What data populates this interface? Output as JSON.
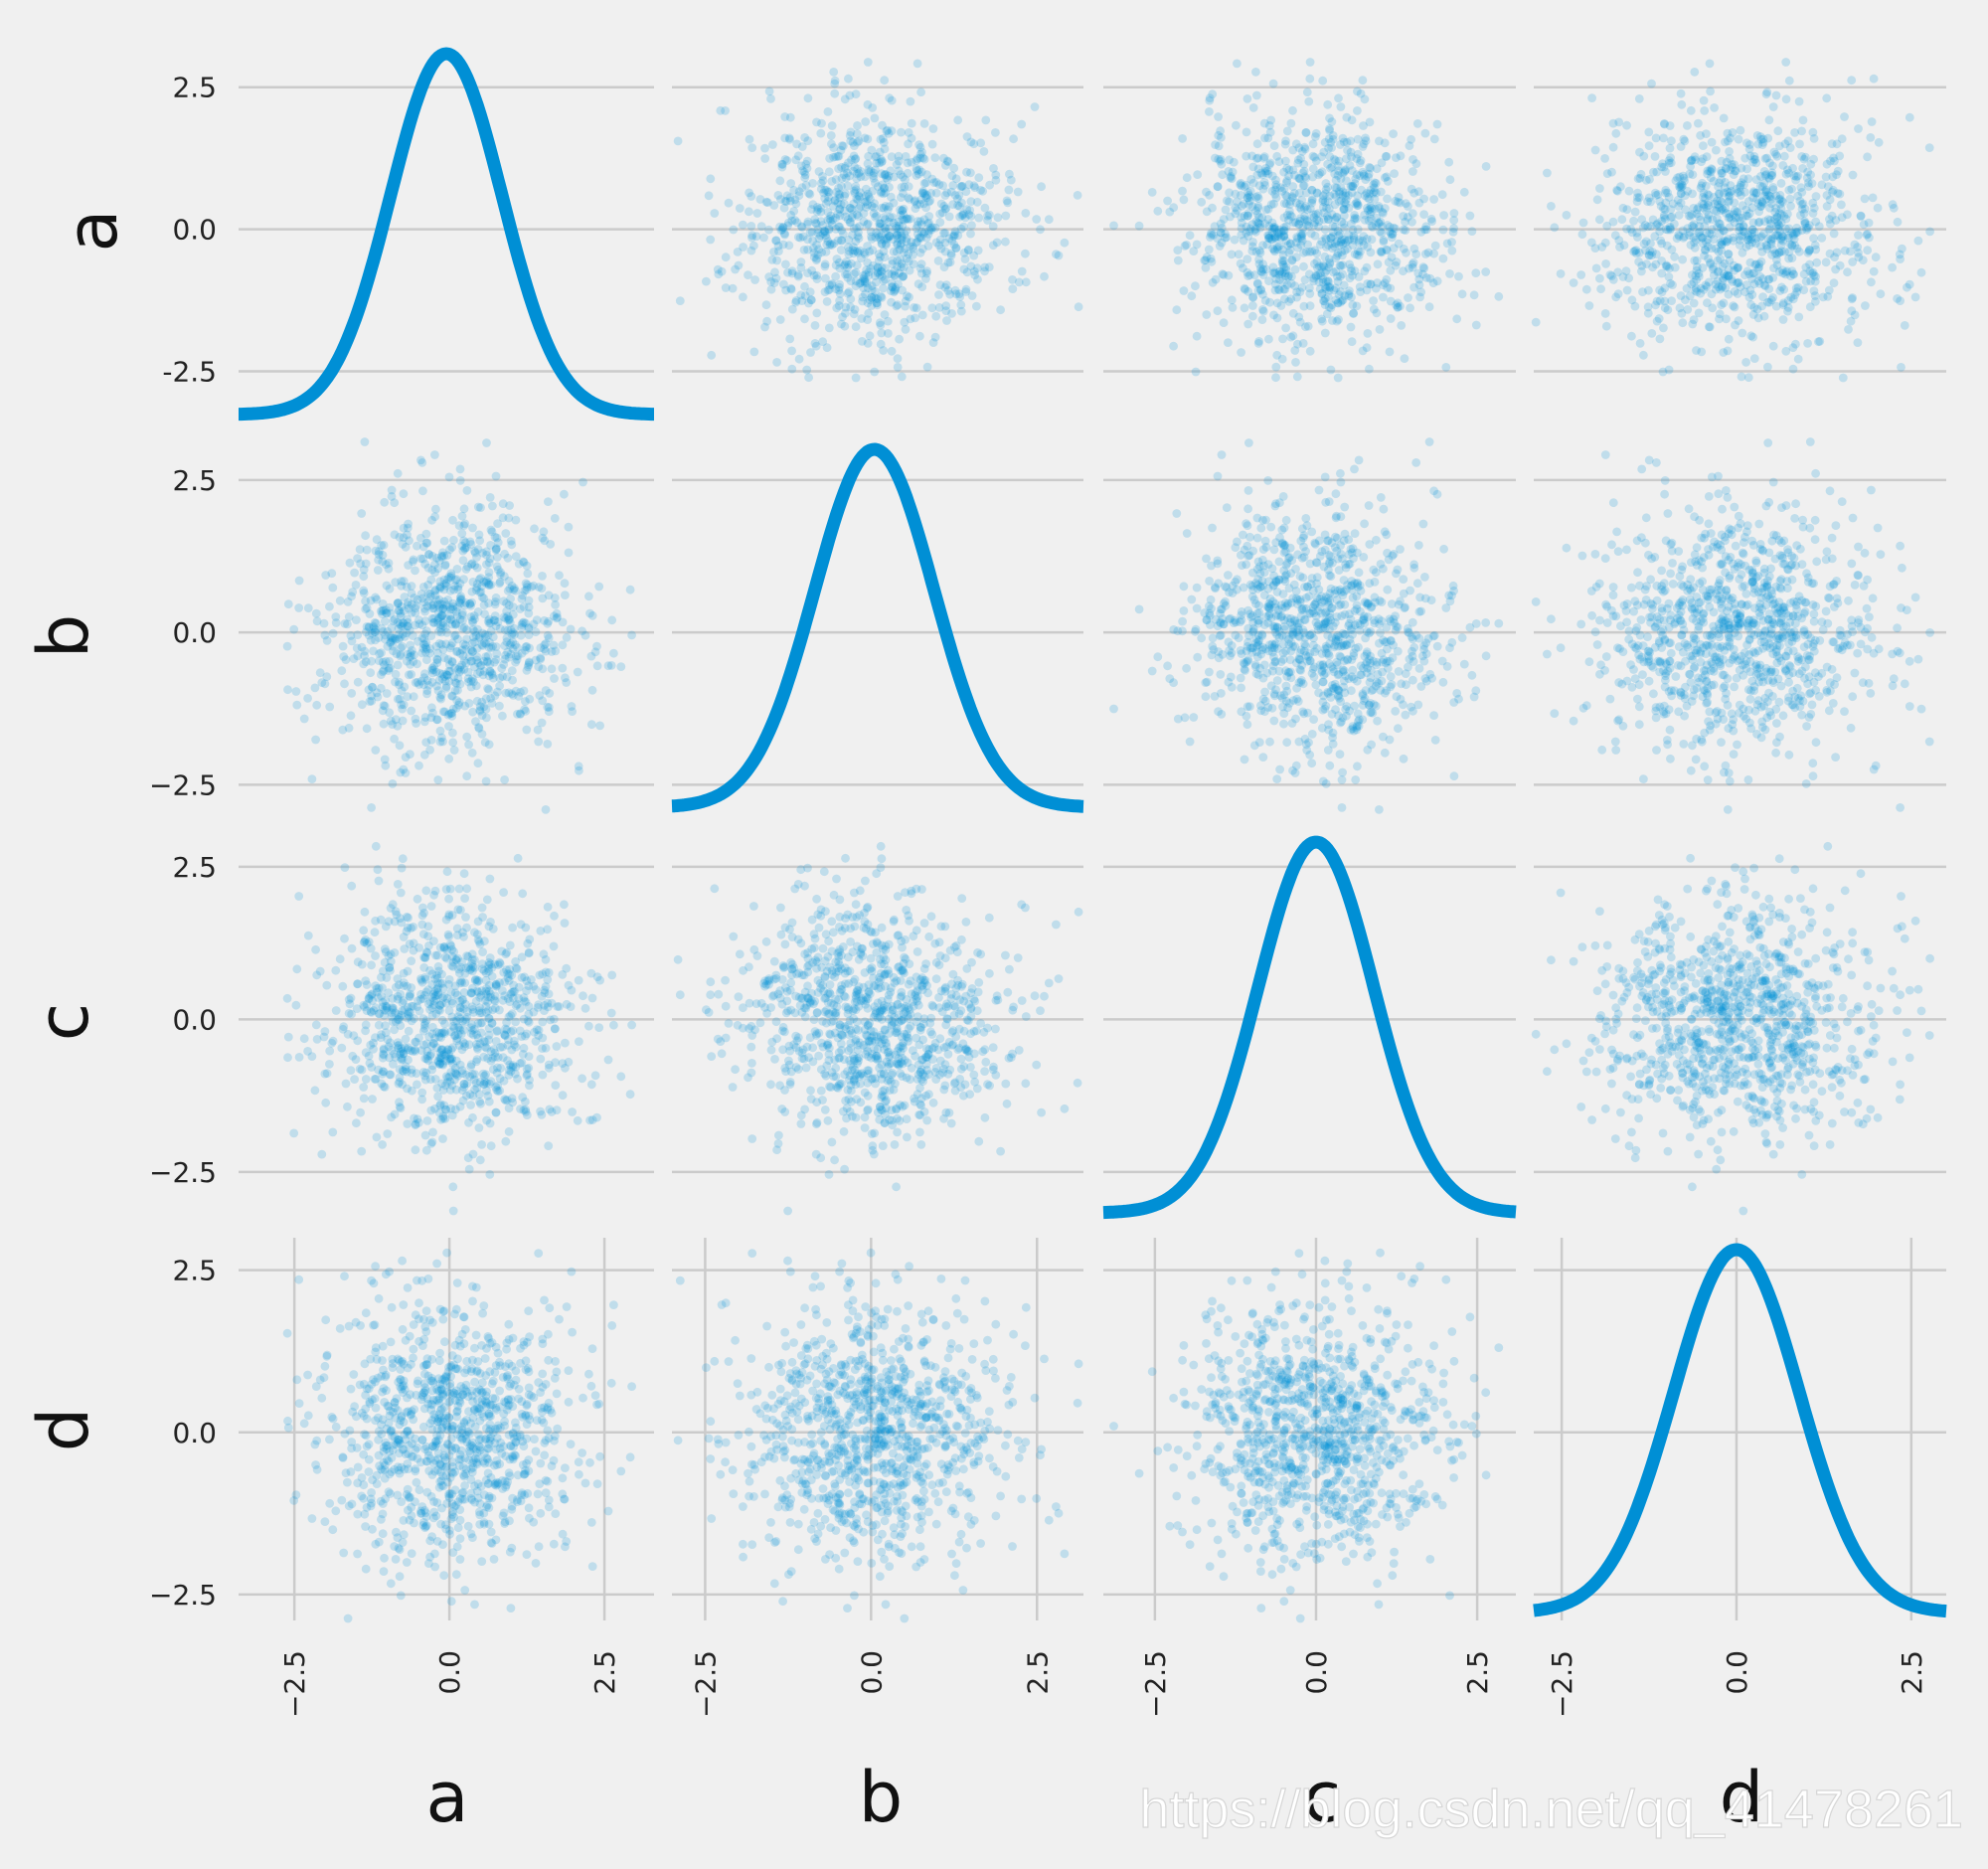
{
  "chart_data": {
    "type": "scatter_matrix",
    "variables": [
      "a",
      "b",
      "c",
      "d"
    ],
    "diagonal": "kde",
    "n_points": 1000,
    "distribution": "standard normal, independent (no visible correlation)",
    "x_ticks": [
      "−2.5",
      "0.0",
      "2.5"
    ],
    "y_tick_labels": {
      "a": [
        "2.5",
        "0.0",
        "-2.5"
      ],
      "b": [
        "2.5",
        "0.0",
        "−2.5"
      ],
      "c": [
        "2.5",
        "0.0",
        "−2.5"
      ],
      "d": [
        "2.5",
        "0.0",
        "−2.5"
      ]
    },
    "tick_values": [
      -2.5,
      0.0,
      2.5
    ],
    "axis_range": {
      "a": [
        -3.4,
        3.3
      ],
      "b": [
        -3.0,
        3.2
      ],
      "c": [
        -3.3,
        3.1
      ],
      "d": [
        -2.9,
        3.0
      ]
    },
    "kde_peak_x": {
      "a": -0.05,
      "b": 0.05,
      "c": 0.0,
      "d": 0.0
    },
    "marker_color": "#008fd5",
    "marker_alpha": 0.2,
    "line_color": "#008fd5",
    "background": "#f0f0f0",
    "grid": true,
    "grid_color": "#cbcbcb",
    "style": "fivethirtyeight"
  },
  "watermark": "https://blog.csdn.net/qq_41478261"
}
